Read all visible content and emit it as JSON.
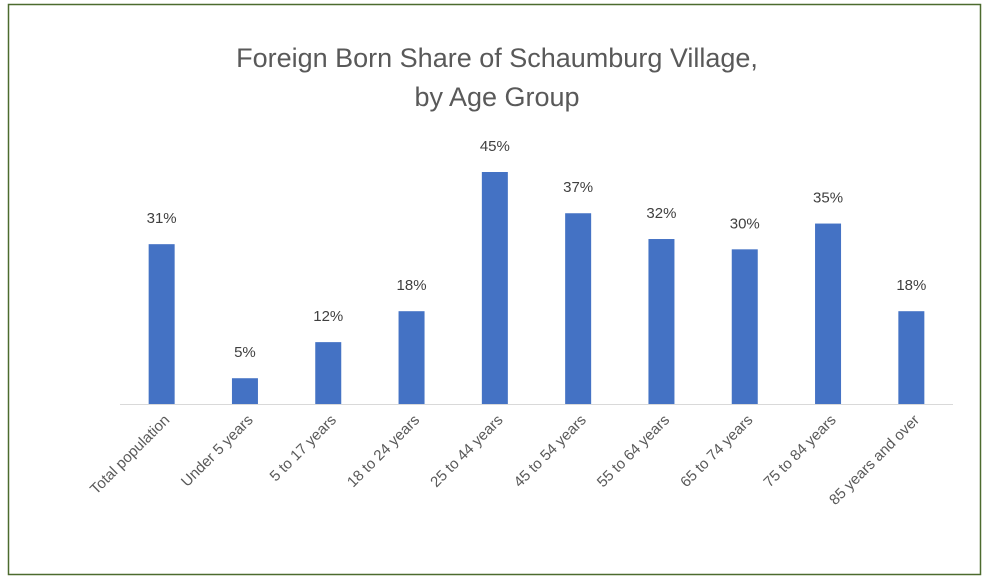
{
  "chart_data": {
    "type": "bar",
    "title": [
      "Foreign Born Share of Schaumburg Village,",
      "by Age Group"
    ],
    "categories": [
      "Total population",
      "Under 5 years",
      "5 to 17 years",
      "18 to 24 years",
      "25 to 44 years",
      "45 to 54 years",
      "55 to 64 years",
      "65 to 74 years",
      "75 to 84 years",
      "85 years and over"
    ],
    "values": [
      31,
      5,
      12,
      18,
      45,
      37,
      32,
      30,
      35,
      18
    ],
    "value_labels": [
      "31%",
      "5%",
      "12%",
      "18%",
      "45%",
      "37%",
      "32%",
      "30%",
      "35%",
      "18%"
    ],
    "color": "#4472c4"
  }
}
